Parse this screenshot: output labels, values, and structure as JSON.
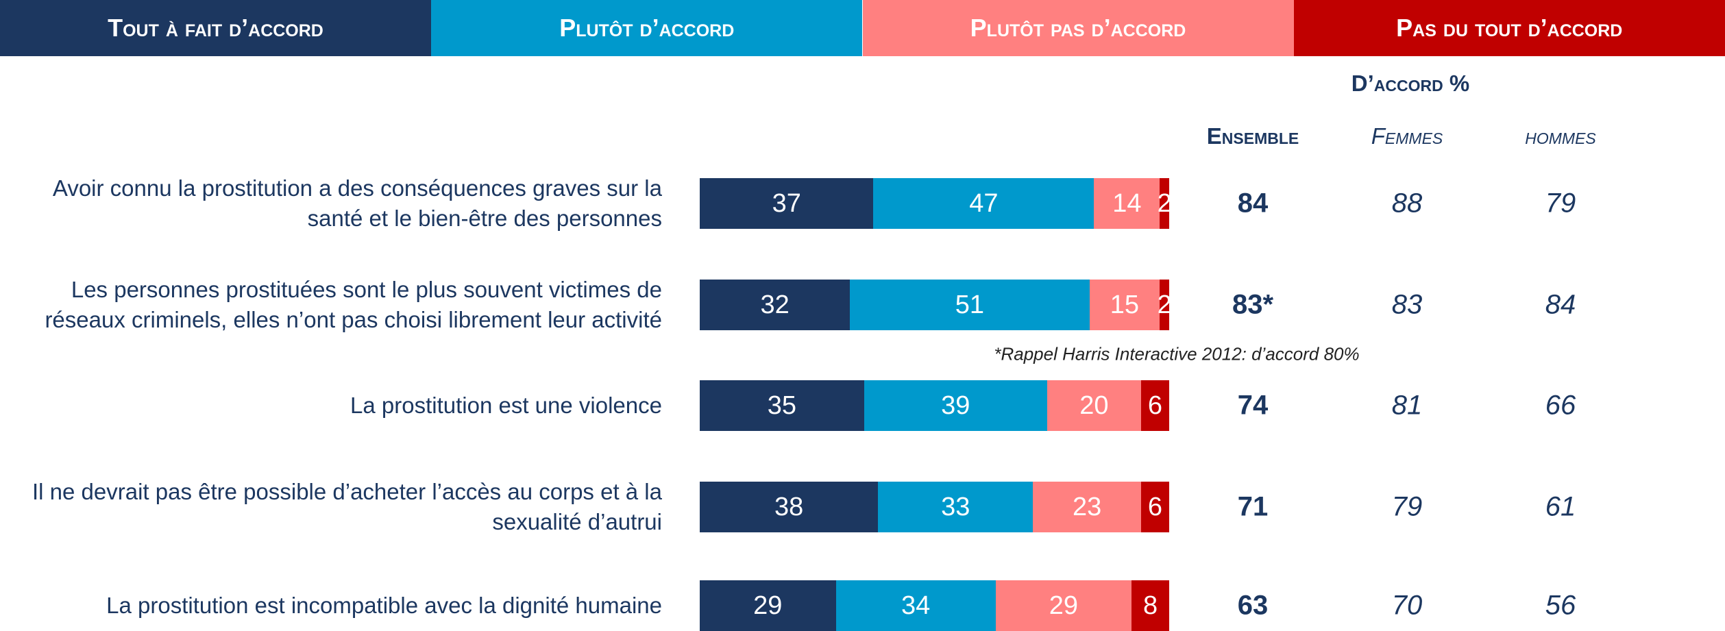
{
  "chart_data": {
    "type": "bar",
    "orientation": "horizontal",
    "stacked": true,
    "xlim": [
      0,
      100
    ],
    "categories": [
      "Avoir connu la prostitution a des conséquences graves sur la santé et le bien-être des personnes",
      "Les personnes prostituées sont le plus souvent victimes de réseaux criminels, elles n’ont pas choisi librement leur activité",
      "La prostitution est une violence",
      "Il ne devrait pas être possible d’acheter l’accès au corps et à la sexualité d’autrui",
      "La prostitution est incompatible avec la dignité humaine"
    ],
    "series": [
      {
        "name": "Tout à fait d’accord",
        "color": "#1c3760",
        "values": [
          37,
          32,
          35,
          38,
          29
        ]
      },
      {
        "name": "Plutôt d’accord",
        "color": "#0099cc",
        "values": [
          47,
          51,
          39,
          33,
          34
        ]
      },
      {
        "name": "Plutôt pas d’accord",
        "color": "#ff8080",
        "values": [
          14,
          15,
          20,
          23,
          29
        ]
      },
      {
        "name": "Pas du tout d’accord",
        "color": "#c00000",
        "values": [
          2,
          2,
          6,
          6,
          8
        ]
      }
    ],
    "table": {
      "title": "D’accord %",
      "columns": [
        {
          "name": "Ensemble",
          "values": [
            84,
            83,
            74,
            71,
            63
          ],
          "value_labels": [
            "84",
            "83*",
            "74",
            "71",
            "63"
          ]
        },
        {
          "name": "Femmes",
          "values": [
            88,
            83,
            81,
            79,
            70
          ]
        },
        {
          "name": "hommes",
          "values": [
            79,
            84,
            66,
            61,
            56
          ]
        }
      ]
    },
    "note": "*Rappel Harris Interactive 2012: d’accord 80%"
  }
}
